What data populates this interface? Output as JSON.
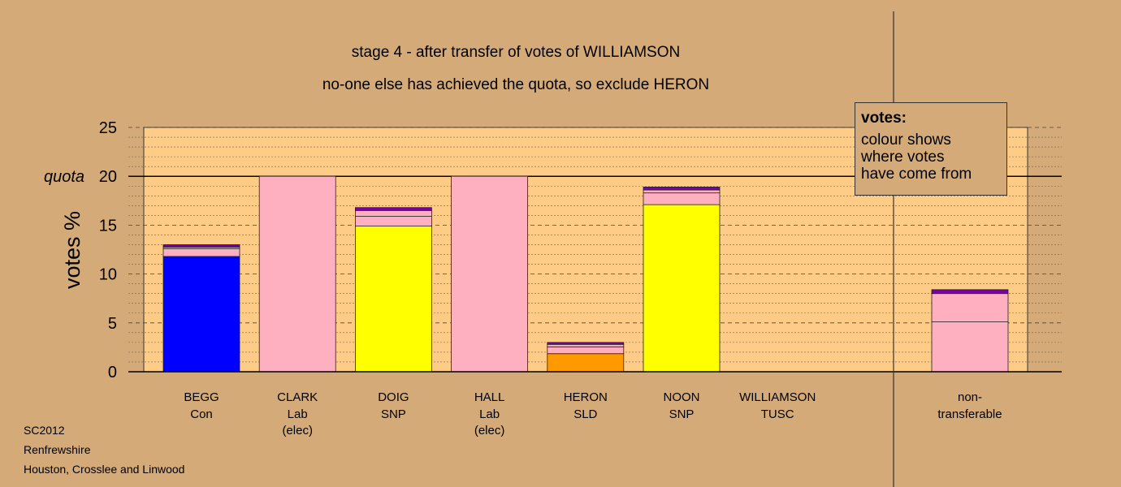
{
  "titles": {
    "line1": "stage 4 - after transfer of votes of WILLIAMSON",
    "line2": "no-one else has achieved the quota, so exclude HERON"
  },
  "legend": {
    "title": "votes:",
    "body": "colour shows\nwhere votes\nhave come from"
  },
  "footer": {
    "line1": "SC2012",
    "line2": "Renfrewshire",
    "line3": "Houston, Crosslee and Linwood"
  },
  "colors": {
    "background": "#d4aa78",
    "plot_area": "#ffcc88",
    "Con": "#0000ff",
    "Lab": "#ffb0c0",
    "SNP": "#ffff00",
    "SLD": "#ff9900",
    "TUSC": "#7a00a8"
  },
  "chart_data": {
    "type": "bar",
    "stacked": true,
    "ylabel": "votes %",
    "ylim": [
      0,
      25
    ],
    "yticks": [
      "0",
      "5",
      "10",
      "15",
      "20",
      "25"
    ],
    "quota": {
      "label": "quota",
      "value": 20
    },
    "grid": true,
    "categories": [
      {
        "name": "BEGG",
        "party": "Con",
        "note": ""
      },
      {
        "name": "CLARK",
        "party": "Lab",
        "note": "(elec)"
      },
      {
        "name": "DOIG",
        "party": "SNP",
        "note": ""
      },
      {
        "name": "HALL",
        "party": "Lab",
        "note": "(elec)"
      },
      {
        "name": "HERON",
        "party": "SLD",
        "note": ""
      },
      {
        "name": "NOON",
        "party": "SNP",
        "note": ""
      },
      {
        "name": "WILLIAMSON",
        "party": "TUSC",
        "note": ""
      }
    ],
    "non_transferable": {
      "label": "non-\ntransferable",
      "segments": [
        {
          "source": "Lab",
          "value": 5.1
        },
        {
          "source": "Lab",
          "value": 2.9
        },
        {
          "source": "TUSC",
          "value": 0.4
        }
      ]
    },
    "bars": [
      [
        {
          "source": "Con",
          "value": 11.8
        },
        {
          "source": "Lab",
          "value": 0.8
        },
        {
          "source": "Lab",
          "value": 0.15
        },
        {
          "source": "TUSC",
          "value": 0.25
        }
      ],
      [
        {
          "source": "Lab",
          "value": 20.0
        }
      ],
      [
        {
          "source": "SNP",
          "value": 14.9
        },
        {
          "source": "Lab",
          "value": 1.0
        },
        {
          "source": "Lab",
          "value": 0.6
        },
        {
          "source": "TUSC",
          "value": 0.3
        }
      ],
      [
        {
          "source": "Lab",
          "value": 20.0
        }
      ],
      [
        {
          "source": "SLD",
          "value": 1.85
        },
        {
          "source": "Lab",
          "value": 0.7
        },
        {
          "source": "Lab",
          "value": 0.25
        },
        {
          "source": "TUSC",
          "value": 0.2
        }
      ],
      [
        {
          "source": "SNP",
          "value": 17.1
        },
        {
          "source": "Lab",
          "value": 1.2
        },
        {
          "source": "Lab",
          "value": 0.3
        },
        {
          "source": "TUSC",
          "value": 0.3
        }
      ],
      []
    ]
  }
}
